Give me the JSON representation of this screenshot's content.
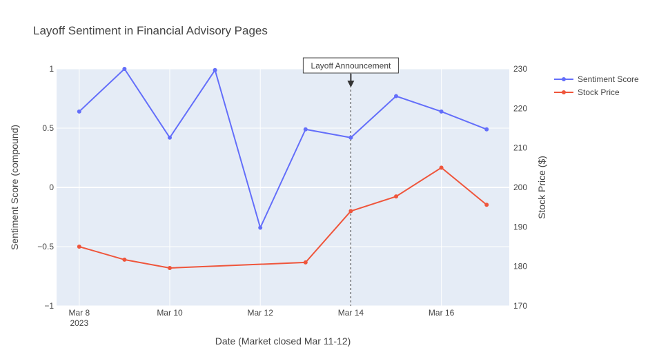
{
  "chart_data": {
    "type": "line",
    "title": "Layoff Sentiment in Financial Advisory Pages",
    "xlabel": "Date (Market closed Mar 11-12)",
    "ylabel": "Sentiment Score (compound)",
    "y2label": "Stock Price ($)",
    "x_tick_labels": [
      {
        "date": "2023-03-08",
        "line1": "Mar 8",
        "line2": "2023"
      },
      {
        "date": "2023-03-10",
        "line1": "Mar 10",
        "line2": ""
      },
      {
        "date": "2023-03-12",
        "line1": "Mar 12",
        "line2": ""
      },
      {
        "date": "2023-03-14",
        "line1": "Mar 14",
        "line2": ""
      },
      {
        "date": "2023-03-16",
        "line1": "Mar 16",
        "line2": ""
      }
    ],
    "xlim": [
      "2023-03-07 12:00",
      "2023-03-17 12:00"
    ],
    "ylim": [
      -1,
      1
    ],
    "y_ticks": [
      {
        "value": -1,
        "label": "−1"
      },
      {
        "value": -0.5,
        "label": "−0.5"
      },
      {
        "value": 0,
        "label": "0"
      },
      {
        "value": 0.5,
        "label": "0.5"
      },
      {
        "value": 1,
        "label": "1"
      }
    ],
    "y2lim": [
      170,
      230
    ],
    "y2_ticks": [
      {
        "value": 170,
        "label": "170"
      },
      {
        "value": 180,
        "label": "180"
      },
      {
        "value": 190,
        "label": "190"
      },
      {
        "value": 200,
        "label": "200"
      },
      {
        "value": 210,
        "label": "210"
      },
      {
        "value": 220,
        "label": "220"
      },
      {
        "value": 230,
        "label": "230"
      }
    ],
    "grid": true,
    "legend_position": "top-right",
    "series": [
      {
        "name": "Sentiment Score",
        "axis": "y",
        "color": "#636efa",
        "points": [
          {
            "x": "2023-03-08",
            "y": 0.64
          },
          {
            "x": "2023-03-09",
            "y": 1.0
          },
          {
            "x": "2023-03-10",
            "y": 0.42
          },
          {
            "x": "2023-03-11",
            "y": 0.99
          },
          {
            "x": "2023-03-12",
            "y": -0.34
          },
          {
            "x": "2023-03-13",
            "y": 0.49
          },
          {
            "x": "2023-03-14",
            "y": 0.42
          },
          {
            "x": "2023-03-15",
            "y": 0.77
          },
          {
            "x": "2023-03-16",
            "y": 0.64
          },
          {
            "x": "2023-03-17",
            "y": 0.49
          }
        ]
      },
      {
        "name": "Stock Price",
        "axis": "y2",
        "color": "#ef553b",
        "points": [
          {
            "x": "2023-03-08",
            "y": 185.0
          },
          {
            "x": "2023-03-09",
            "y": 181.7
          },
          {
            "x": "2023-03-10",
            "y": 179.6
          },
          {
            "x": "2023-03-13",
            "y": 181.0
          },
          {
            "x": "2023-03-14",
            "y": 194.0
          },
          {
            "x": "2023-03-15",
            "y": 197.7
          },
          {
            "x": "2023-03-16",
            "y": 205.0
          },
          {
            "x": "2023-03-17",
            "y": 195.6
          }
        ]
      }
    ],
    "annotations": [
      {
        "text": "Layoff Announcement",
        "x": "2023-03-14",
        "type": "vertical-dashed-line-with-arrow"
      }
    ],
    "colors": {
      "plot_bg": "#e5ecf6",
      "grid": "#ffffff",
      "text": "#444444",
      "annotation_line": "#333333"
    }
  }
}
